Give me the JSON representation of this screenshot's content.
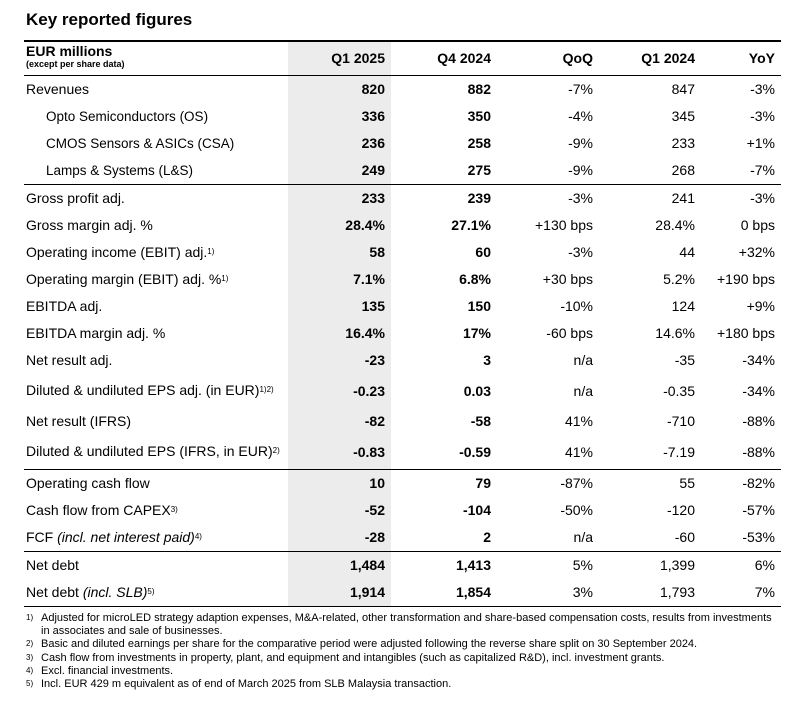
{
  "title": "Key reported figures",
  "header": {
    "label": "EUR millions",
    "sublabel": "(except per share data)",
    "columns": [
      "Q1 2025",
      "Q4 2024",
      "QoQ",
      "Q1 2024",
      "YoY"
    ]
  },
  "rows": [
    {
      "label": "Revenues",
      "sup": "",
      "italic": "",
      "values": [
        "820",
        "882",
        "-7%",
        "847",
        "-3%"
      ]
    },
    {
      "label": "Opto Semiconductors (OS)",
      "sup": "",
      "italic": "",
      "values": [
        "336",
        "350",
        "-4%",
        "345",
        "-3%"
      ]
    },
    {
      "label": "CMOS Sensors & ASICs (CSA)",
      "sup": "",
      "italic": "",
      "values": [
        "236",
        "258",
        "-9%",
        "233",
        "+1%"
      ]
    },
    {
      "label": "Lamps & Systems (L&S)",
      "sup": "",
      "italic": "",
      "values": [
        "249",
        "275",
        "-9%",
        "268",
        "-7%"
      ]
    },
    {
      "label": "Gross profit adj.",
      "sup": "",
      "italic": "",
      "values": [
        "233",
        "239",
        "-3%",
        "241",
        "-3%"
      ]
    },
    {
      "label": "Gross margin adj. %",
      "sup": "",
      "italic": "",
      "values": [
        "28.4%",
        "27.1%",
        "+130 bps",
        "28.4%",
        "0 bps"
      ]
    },
    {
      "label": "Operating income (EBIT) adj.",
      "sup": "1)",
      "italic": "",
      "values": [
        "58",
        "60",
        "-3%",
        "44",
        "+32%"
      ]
    },
    {
      "label": "Operating margin (EBIT) adj. %",
      "sup": "1)",
      "italic": "",
      "values": [
        "7.1%",
        "6.8%",
        "+30 bps",
        "5.2%",
        "+190 bps"
      ]
    },
    {
      "label": "EBITDA adj.",
      "sup": "",
      "italic": "",
      "values": [
        "135",
        "150",
        "-10%",
        "124",
        "+9%"
      ]
    },
    {
      "label": "EBITDA margin adj. %",
      "sup": "",
      "italic": "",
      "values": [
        "16.4%",
        "17%",
        "-60 bps",
        "14.6%",
        "+180 bps"
      ]
    },
    {
      "label": "Net result adj.",
      "sup": "",
      "italic": "",
      "values": [
        "-23",
        "3",
        "n/a",
        "-35",
        "-34%"
      ]
    },
    {
      "label": "Diluted & undiluted EPS adj. (in EUR)",
      "sup": "1)2)",
      "italic": "",
      "values": [
        "-0.23",
        "0.03",
        "n/a",
        "-0.35",
        "-34%"
      ]
    },
    {
      "label": "Net result (IFRS)",
      "sup": "",
      "italic": "",
      "values": [
        "-82",
        "-58",
        "41%",
        "-710",
        "-88%"
      ]
    },
    {
      "label": "Diluted & undiluted EPS (IFRS, in EUR)",
      "sup": "2)",
      "italic": "",
      "values": [
        "-0.83",
        "-0.59",
        "41%",
        "-7.19",
        "-88%"
      ]
    },
    {
      "label": "Operating cash flow",
      "sup": "",
      "italic": "",
      "values": [
        "10",
        "79",
        "-87%",
        "55",
        "-82%"
      ]
    },
    {
      "label": "Cash flow from CAPEX",
      "sup": "3)",
      "italic": "",
      "values": [
        "-52",
        "-104",
        "-50%",
        "-120",
        "-57%"
      ]
    },
    {
      "label": "FCF ",
      "sup": "4)",
      "italic": "(incl. net interest paid)",
      "values": [
        "-28",
        "2",
        "n/a",
        "-60",
        "-53%"
      ]
    },
    {
      "label": "Net debt",
      "sup": "",
      "italic": "",
      "values": [
        "1,484",
        "1,413",
        "5%",
        "1,399",
        "6%"
      ]
    },
    {
      "label": "Net debt ",
      "sup": "5)",
      "italic": "(incl. SLB)",
      "values": [
        "1,914",
        "1,854",
        "3%",
        "1,793",
        "7%"
      ]
    }
  ],
  "footnotes": [
    {
      "mark": "1)",
      "text": "Adjusted for microLED strategy adaption expenses, M&A-related, other transformation and share-based compensation costs, results from investments in associates and sale of businesses."
    },
    {
      "mark": "2)",
      "text": "Basic and diluted earnings per share for the comparative period were adjusted following the reverse share split on 30 September 2024."
    },
    {
      "mark": "3)",
      "text": "Cash flow from investments in property, plant, and equipment and intangibles (such as capitalized R&D), incl. investment grants."
    },
    {
      "mark": "4)",
      "text": "Excl. financial investments."
    },
    {
      "mark": "5)",
      "text": "Incl. EUR 429 m equivalent as of end of March 2025 from SLB Malaysia transaction."
    }
  ]
}
